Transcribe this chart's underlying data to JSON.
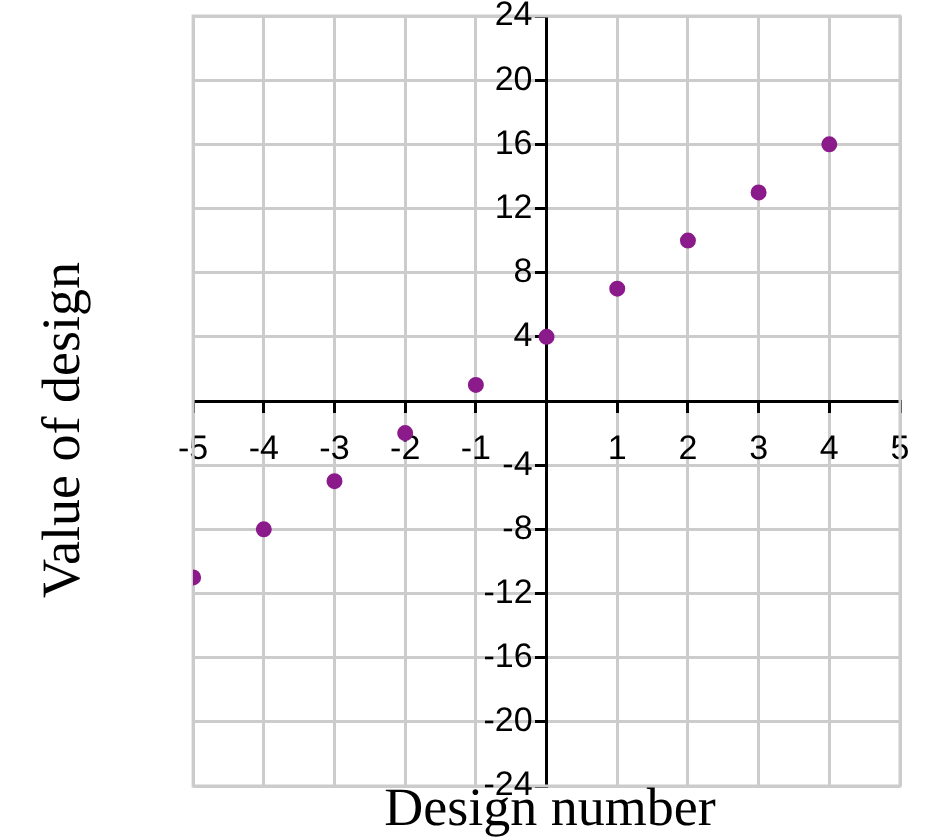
{
  "chart_data": {
    "type": "scatter",
    "xlabel": "Design number",
    "ylabel": "Value of design",
    "x": [
      -5,
      -4,
      -3,
      -2,
      -1,
      0,
      1,
      2,
      3,
      4
    ],
    "series": [
      {
        "color": "#8b1a8b",
        "values": [
          -11,
          -8,
          -5,
          -2,
          1,
          4,
          7,
          10,
          13,
          16
        ]
      }
    ],
    "xlim": [
      -5,
      5
    ],
    "ylim": [
      -24,
      24
    ],
    "xticks": [
      -5,
      -4,
      -3,
      -2,
      -1,
      1,
      2,
      3,
      4,
      5
    ],
    "yticks": [
      -24,
      -20,
      -16,
      -12,
      -8,
      -4,
      4,
      8,
      12,
      16,
      20,
      24
    ],
    "grid": true,
    "legend": false,
    "marker": "circle"
  }
}
